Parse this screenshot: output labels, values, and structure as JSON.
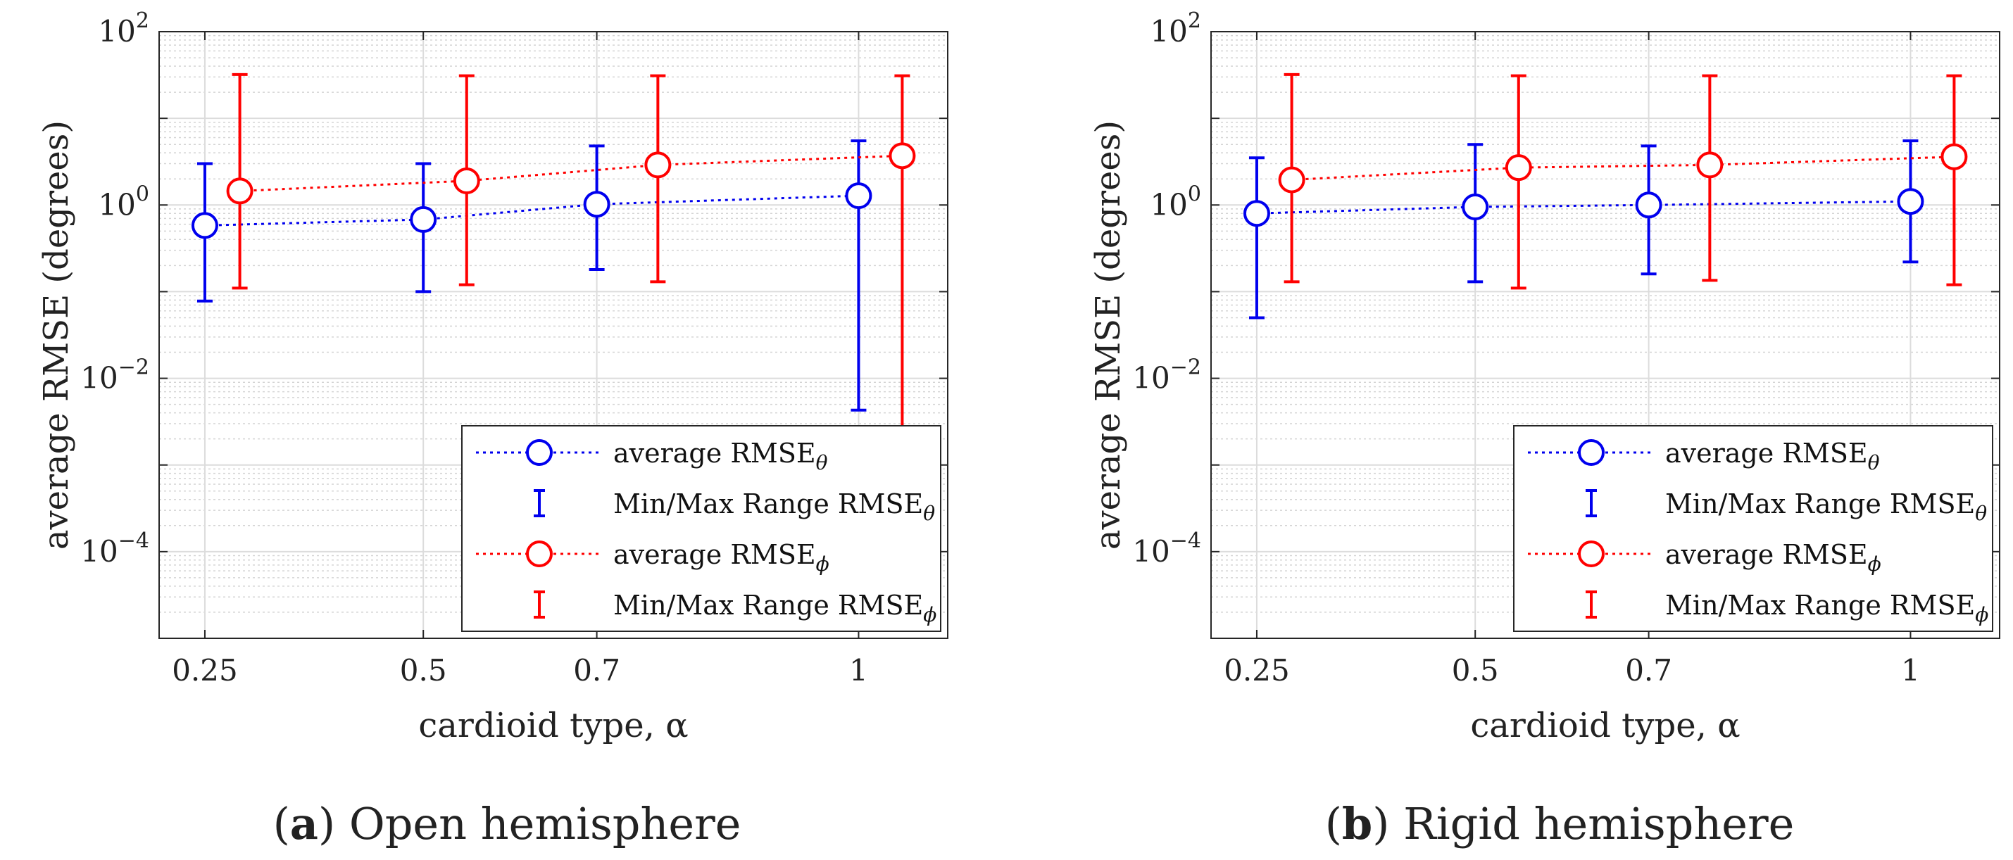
{
  "chart_data": [
    {
      "type": "scatter",
      "panel": "a",
      "caption_letter": "a",
      "caption_text": "Open hemisphere",
      "xlabel": "cardioid type, α",
      "ylabel": "average RMSE (degrees)",
      "x_ticks": [
        "0.25",
        "0.5",
        "0.7",
        "1"
      ],
      "x_tick_values": [
        0.25,
        0.5,
        0.7,
        1
      ],
      "y_ticks": [
        {
          "base": "10",
          "exp": "2",
          "value": 100
        },
        {
          "base": "10",
          "exp": "0",
          "value": 1
        },
        {
          "base": "10",
          "exp": "−2",
          "value": 0.01
        },
        {
          "base": "10",
          "exp": "−4",
          "value": 0.0001
        }
      ],
      "yscale": "log",
      "ylim": [
        1e-05,
        100
      ],
      "grid": true,
      "legend_position": "bottom-right",
      "series": [
        {
          "name": "average RMSE",
          "subscript": "θ",
          "range_name": "Min/Max Range RMSE",
          "color": "#0000ee",
          "x": [
            0.25,
            0.5,
            0.7,
            1.0
          ],
          "x_offset_category": [
            0,
            0,
            0,
            0
          ],
          "y": [
            0.58,
            0.68,
            1.02,
            1.28
          ],
          "ymin": [
            0.078,
            0.1,
            0.18,
            0.0043
          ],
          "ymax": [
            3.0,
            3.0,
            4.8,
            5.5
          ]
        },
        {
          "name": "average RMSE",
          "subscript": "ϕ",
          "range_name": "Min/Max Range RMSE",
          "color": "#ff0000",
          "x": [
            0.29,
            0.55,
            0.77,
            1.05
          ],
          "y": [
            1.45,
            1.9,
            2.9,
            3.7
          ],
          "ymin": [
            0.11,
            0.12,
            0.13,
            0.0019
          ],
          "ymax": [
            32,
            31,
            31,
            31
          ]
        }
      ]
    },
    {
      "type": "scatter",
      "panel": "b",
      "caption_letter": "b",
      "caption_text": "Rigid hemisphere",
      "xlabel": "cardioid type, α",
      "ylabel": "average RMSE (degrees)",
      "x_ticks": [
        "0.25",
        "0.5",
        "0.7",
        "1"
      ],
      "x_tick_values": [
        0.25,
        0.5,
        0.7,
        1
      ],
      "y_ticks": [
        {
          "base": "10",
          "exp": "2",
          "value": 100
        },
        {
          "base": "10",
          "exp": "0",
          "value": 1
        },
        {
          "base": "10",
          "exp": "−2",
          "value": 0.01
        },
        {
          "base": "10",
          "exp": "−4",
          "value": 0.0001
        }
      ],
      "yscale": "log",
      "ylim": [
        1e-05,
        100
      ],
      "grid": true,
      "legend_position": "bottom-right",
      "series": [
        {
          "name": "average RMSE",
          "subscript": "θ",
          "range_name": "Min/Max Range RMSE",
          "color": "#0000ee",
          "x": [
            0.25,
            0.5,
            0.7,
            1.0
          ],
          "y": [
            0.8,
            0.95,
            1.0,
            1.1
          ],
          "ymin": [
            0.05,
            0.13,
            0.16,
            0.22
          ],
          "ymax": [
            3.5,
            5.0,
            4.8,
            5.5
          ]
        },
        {
          "name": "average RMSE",
          "subscript": "ϕ",
          "range_name": "Min/Max Range RMSE",
          "color": "#ff0000",
          "x": [
            0.29,
            0.55,
            0.77,
            1.05
          ],
          "y": [
            1.95,
            2.7,
            2.9,
            3.6
          ],
          "ymin": [
            0.13,
            0.11,
            0.135,
            0.12
          ],
          "ymax": [
            32,
            31,
            31,
            31
          ]
        }
      ]
    }
  ]
}
